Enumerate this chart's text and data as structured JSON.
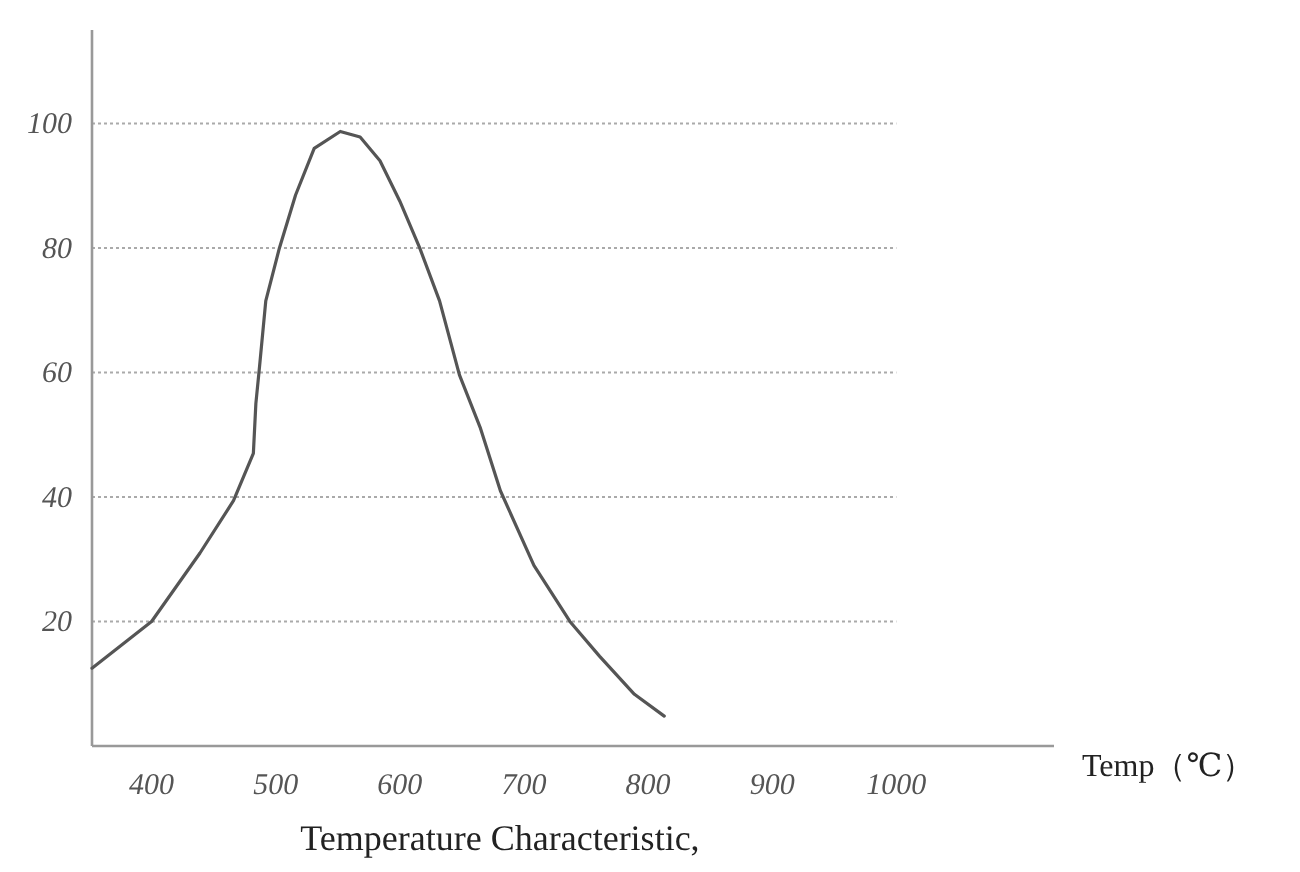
{
  "chart_data": {
    "type": "line",
    "title": "Temperature Characteristic,",
    "xlabel": "Temp（℃）",
    "x": [
      352,
      400,
      439,
      466,
      482,
      484,
      487,
      492,
      503,
      516,
      531,
      552,
      568,
      584,
      600,
      616,
      632,
      648,
      665,
      681,
      708,
      737,
      761,
      789,
      813
    ],
    "values": [
      12.5,
      20,
      31,
      39.4,
      47,
      55,
      61,
      71.5,
      80,
      88.5,
      96,
      98.7,
      97.8,
      94,
      87.5,
      80,
      71.5,
      59.6,
      51,
      41,
      29,
      20,
      14.4,
      8.3,
      4.8
    ],
    "color": "#555555",
    "xlim": [
      352,
      1127
    ],
    "ylim": [
      0,
      115
    ],
    "xticks": [
      400,
      500,
      600,
      700,
      800,
      900,
      1000
    ],
    "yticks": [
      20,
      40,
      60,
      80,
      100
    ],
    "grid": "y",
    "marker": "none",
    "line_style": "solid"
  }
}
